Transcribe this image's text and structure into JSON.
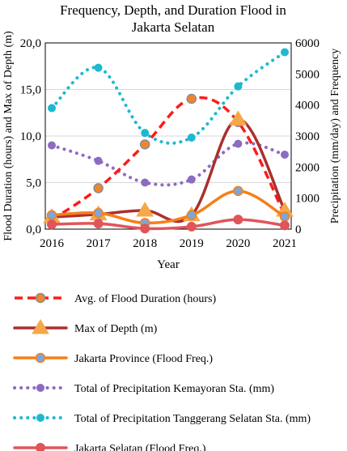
{
  "chart_data": {
    "type": "line",
    "title": "Frequency, Depth, and Duration Flood in Jakarta Selatan",
    "title_lines": [
      "Frequency, Depth, and Duration Flood in",
      "Jakarta Selatan"
    ],
    "xlabel": "Year",
    "ylabel_left": "Flood Duration (hours) and Max of Depth (m)",
    "ylabel_right": "Precipitation (mm/day) and Frequency",
    "x": [
      2016,
      2017,
      2018,
      2019,
      2020,
      2021
    ],
    "x_tick_labels": [
      "2016",
      "2017",
      "2018",
      "2019",
      "2020",
      "2021"
    ],
    "ylim_left": [
      0,
      20
    ],
    "ylim_right": [
      0,
      6000
    ],
    "y_ticks_left": [
      "0,0",
      "5,0",
      "10,0",
      "15,0",
      "20,0"
    ],
    "y_ticks_left_values": [
      0,
      5,
      10,
      15,
      20
    ],
    "y_ticks_right": [
      "0",
      "1000",
      "2000",
      "3000",
      "4000",
      "5000",
      "6000"
    ],
    "y_ticks_right_values": [
      0,
      1000,
      2000,
      3000,
      4000,
      5000,
      6000
    ],
    "grid": true,
    "legend_position": "bottom",
    "series": [
      {
        "name": "Avg. of Flood Duration (hours)",
        "axis": "left",
        "values": [
          1.0,
          4.4,
          9.1,
          14.0,
          11.5,
          1.5
        ],
        "color": "#ff1a1a",
        "line_style": "dashed",
        "marker": "circle",
        "marker_color": "#f0852f",
        "marker_edge": "#8c8c8c"
      },
      {
        "name": "Max of Depth (m)",
        "axis": "left",
        "values": [
          1.3,
          1.6,
          2.0,
          1.5,
          11.8,
          2.0
        ],
        "color": "#a9302d",
        "line_style": "solid",
        "marker": "triangle",
        "marker_color": "#f5a84a"
      },
      {
        "name": "Jakarta Province (Flood Freq.)",
        "axis": "right",
        "values": [
          450,
          520,
          200,
          450,
          1230,
          400
        ],
        "color": "#f77f1a",
        "line_style": "solid",
        "marker": "circle",
        "marker_color": "#7ea6d6",
        "marker_edge": "#f77f1a"
      },
      {
        "name": "Total of Precipitation Kemayoran Sta. (mm)",
        "axis": "right",
        "values": [
          2700,
          2200,
          1500,
          1600,
          2750,
          2400
        ],
        "color": "#8c6bc1",
        "line_style": "dotted",
        "marker": "circle",
        "marker_color": "#8c6bc1"
      },
      {
        "name": "Total of Precipitation Tanggerang Selatan Sta. (mm)",
        "axis": "right",
        "values": [
          3900,
          5200,
          3100,
          2950,
          4600,
          5700
        ],
        "color": "#1fb8cf",
        "line_style": "dotted",
        "marker": "circle",
        "marker_color": "#1fb8cf"
      },
      {
        "name": "Jakarta Selatan (Flood Freq.)",
        "axis": "right",
        "values": [
          150,
          180,
          20,
          80,
          310,
          120
        ],
        "color": "#e0555a",
        "line_style": "solid",
        "marker": "circle",
        "marker_color": "#e0555a"
      }
    ]
  }
}
